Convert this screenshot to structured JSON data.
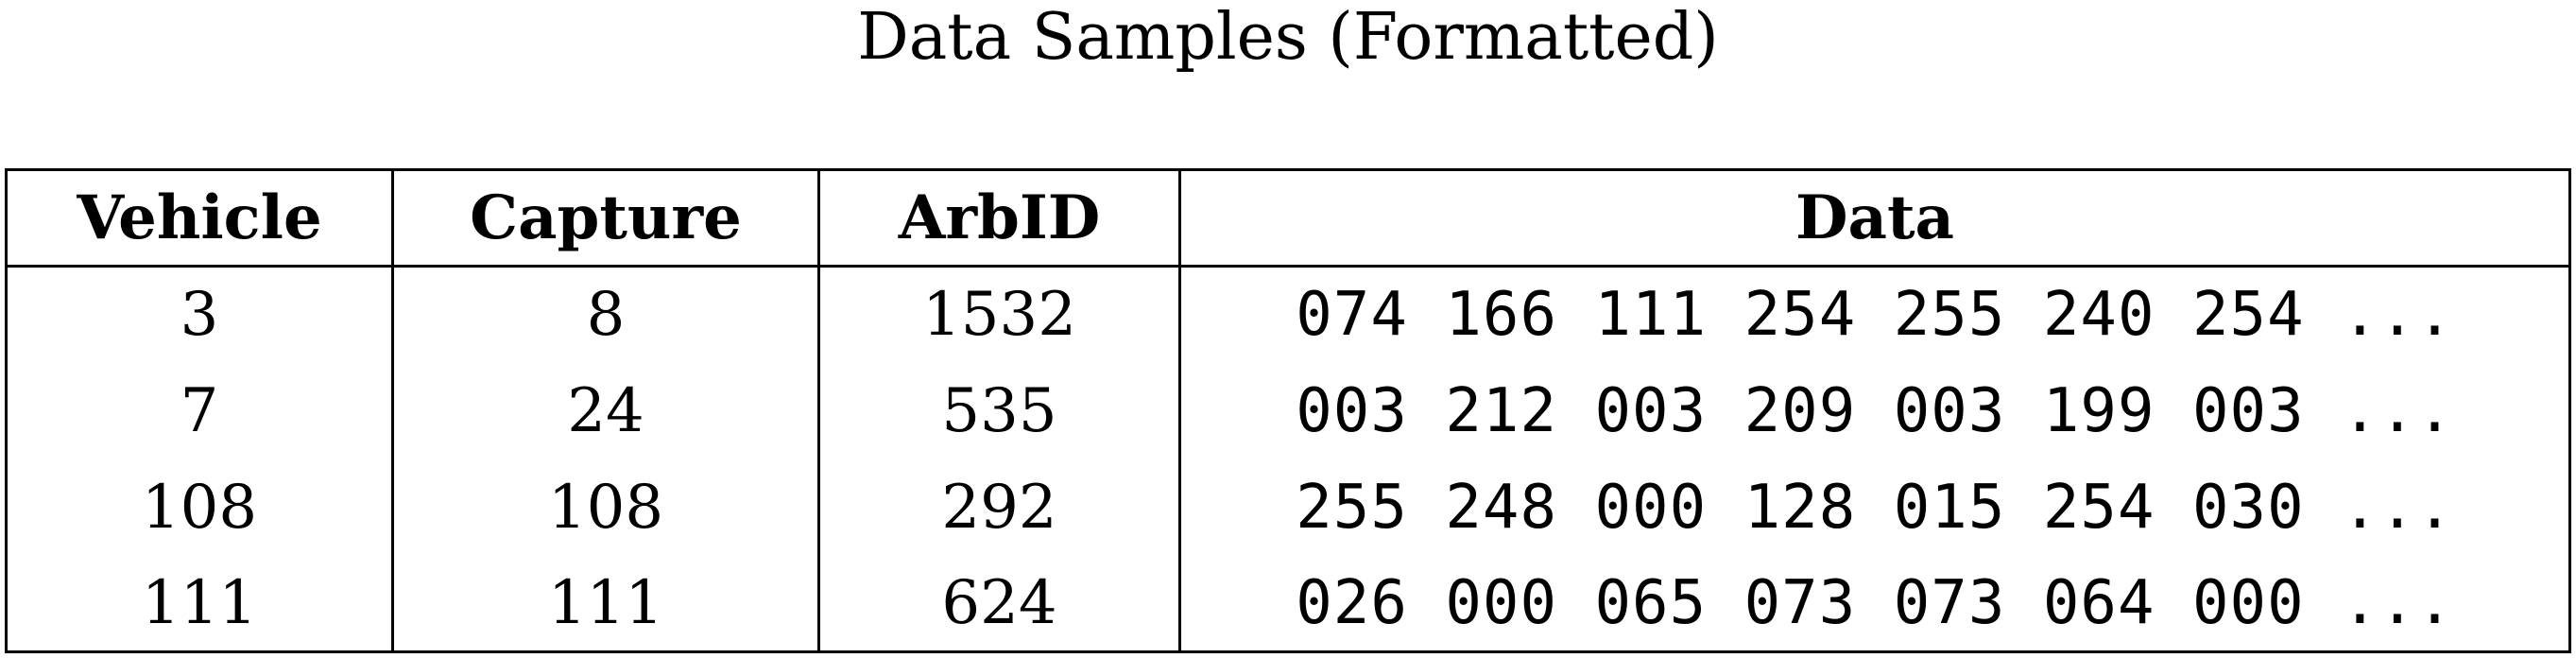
{
  "title": "Data Samples (Formatted)",
  "table": {
    "headers": [
      "Vehicle",
      "Capture",
      "ArbID",
      "Data"
    ],
    "rows": [
      {
        "vehicle": "3",
        "capture": "8",
        "arbid": "1532",
        "data": "074 166 111 254 255 240 254 ..."
      },
      {
        "vehicle": "7",
        "capture": "24",
        "arbid": "535",
        "data": "003 212 003 209 003 199 003 ..."
      },
      {
        "vehicle": "108",
        "capture": "108",
        "arbid": "292",
        "data": "255 248 000 128 015 254 030 ..."
      },
      {
        "vehicle": "111",
        "capture": "111",
        "arbid": "624",
        "data": "026 000 065 073 073 064 000 ..."
      }
    ]
  }
}
